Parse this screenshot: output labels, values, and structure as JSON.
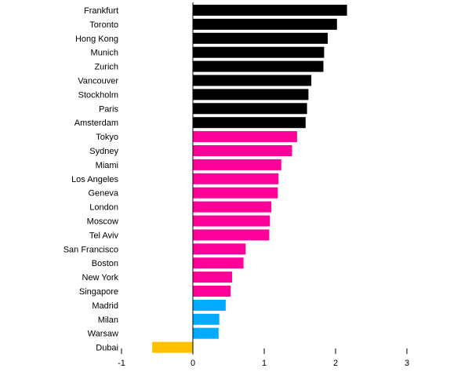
{
  "chart_data": {
    "type": "bar",
    "orientation": "horizontal",
    "title": "",
    "xlabel": "",
    "ylabel": "",
    "xlim": [
      -1,
      3
    ],
    "x_ticks": [
      "-1",
      "0",
      "1",
      "2",
      "3"
    ],
    "grid": false,
    "categories": [
      "Frankfurt",
      "Toronto",
      "Hong Kong",
      "Munich",
      "Zurich",
      "Vancouver",
      "Stockholm",
      "Paris",
      "Amsterdam",
      "Tokyo",
      "Sydney",
      "Miami",
      "Los Angeles",
      "Geneva",
      "London",
      "Moscow",
      "Tel Aviv",
      "San Francisco",
      "Boston",
      "New York",
      "Singapore",
      "Madrid",
      "Milan",
      "Warsaw",
      "Dubai"
    ],
    "values": [
      2.16,
      2.02,
      1.89,
      1.84,
      1.83,
      1.66,
      1.62,
      1.6,
      1.58,
      1.46,
      1.39,
      1.24,
      1.2,
      1.19,
      1.1,
      1.08,
      1.07,
      0.74,
      0.71,
      0.55,
      0.53,
      0.46,
      0.37,
      0.36,
      -0.57
    ],
    "colors": [
      "#000000",
      "#000000",
      "#000000",
      "#000000",
      "#000000",
      "#000000",
      "#000000",
      "#000000",
      "#000000",
      "#ff0099",
      "#ff0099",
      "#ff0099",
      "#ff0099",
      "#ff0099",
      "#ff0099",
      "#ff0099",
      "#ff0099",
      "#ff0099",
      "#ff0099",
      "#ff0099",
      "#ff0099",
      "#00aaff",
      "#00aaff",
      "#00aaff",
      "#ffc000"
    ]
  }
}
